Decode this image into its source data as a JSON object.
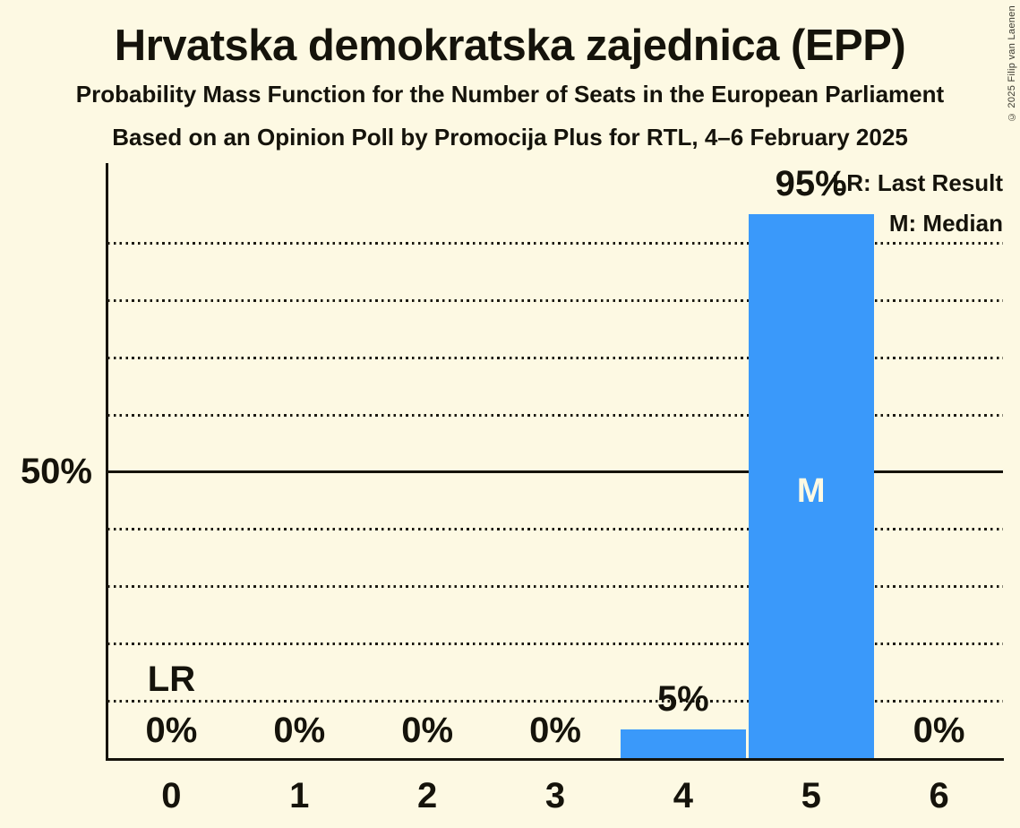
{
  "copyright": "© 2025 Filip van Laenen",
  "colors": {
    "background": "#FDF9E3",
    "bar": "#3A99FA",
    "text": "#15130B",
    "bar_inner_text": "#FDF9E3"
  },
  "chart_data": {
    "type": "bar",
    "title": "Hrvatska demokratska zajednica (EPP)",
    "subtitle": "Probability Mass Function for the Number of Seats in the European Parliament",
    "source_line": "Based on an Opinion Poll by Promocija Plus for RTL, 4–6 February 2025",
    "categories": [
      "0",
      "1",
      "2",
      "3",
      "4",
      "5",
      "6"
    ],
    "values": [
      0,
      0,
      0,
      0,
      5,
      95,
      0
    ],
    "bar_labels": [
      "0%",
      "0%",
      "0%",
      "0%",
      "5%",
      "95%",
      "0%"
    ],
    "ylim": [
      0,
      100
    ],
    "y_tick": {
      "value": 50,
      "label": "50%"
    },
    "solid_gridline": 50,
    "dotted_gridlines": [
      10,
      20,
      30,
      40,
      60,
      70,
      80,
      90
    ],
    "grid": "horizontal-dotted",
    "legend_position": "top-right",
    "legend": {
      "lr": "LR: Last Result",
      "m": "M: Median"
    },
    "annotations": [
      {
        "marker": "LR",
        "category": "0",
        "meaning": "Last Result"
      },
      {
        "marker": "M",
        "category": "5",
        "meaning": "Median"
      }
    ]
  }
}
